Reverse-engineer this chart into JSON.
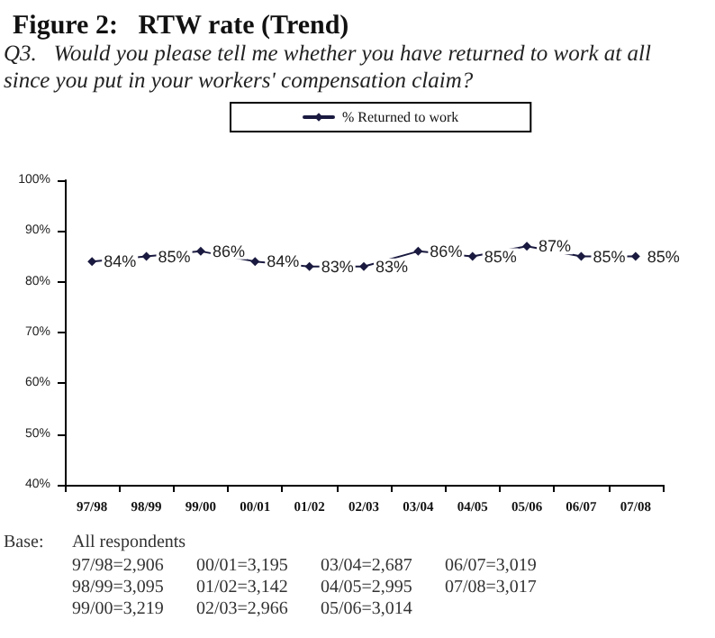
{
  "chart_data": {
    "type": "line",
    "title": "Figure 2:   RTW rate (Trend)",
    "subtitle": "Q3.   Would you please tell me whether you have returned to work at all since you put in your workers' compensation claim?",
    "categories": [
      "97/98",
      "98/99",
      "99/00",
      "00/01",
      "01/02",
      "02/03",
      "03/04",
      "04/05",
      "05/06",
      "06/07",
      "07/08"
    ],
    "series": [
      {
        "name": "% Returned to work",
        "color": "#1a1a40",
        "values": [
          84,
          85,
          86,
          84,
          83,
          83,
          86,
          85,
          87,
          85,
          85
        ],
        "value_labels": [
          "84%",
          "85%",
          "86%",
          "84%",
          "83%",
          "83%",
          "86%",
          "85%",
          "87%",
          "85%",
          "85%"
        ]
      }
    ],
    "ylim": [
      40,
      100
    ],
    "yticks": [
      {
        "value": 40,
        "label": "40%"
      },
      {
        "value": 50,
        "label": "50%"
      },
      {
        "value": 60,
        "label": "60%"
      },
      {
        "value": 70,
        "label": "70%"
      },
      {
        "value": 80,
        "label": "80%"
      },
      {
        "value": 90,
        "label": "90%"
      },
      {
        "value": 100,
        "label": "100%"
      }
    ],
    "grid": false,
    "legend": "top",
    "marker": "diamond",
    "line_style": "solid",
    "annotations": [
      "Base:",
      "All respondents",
      "97/98=2,906",
      "98/99=3,095",
      "99/00=3,219",
      "00/01=3,195",
      "01/02=3,142",
      "02/03=2,966",
      "03/04=2,687",
      "04/05=2,995",
      "05/06=3,014",
      "06/07=3,019",
      "07/08=3,017"
    ]
  }
}
